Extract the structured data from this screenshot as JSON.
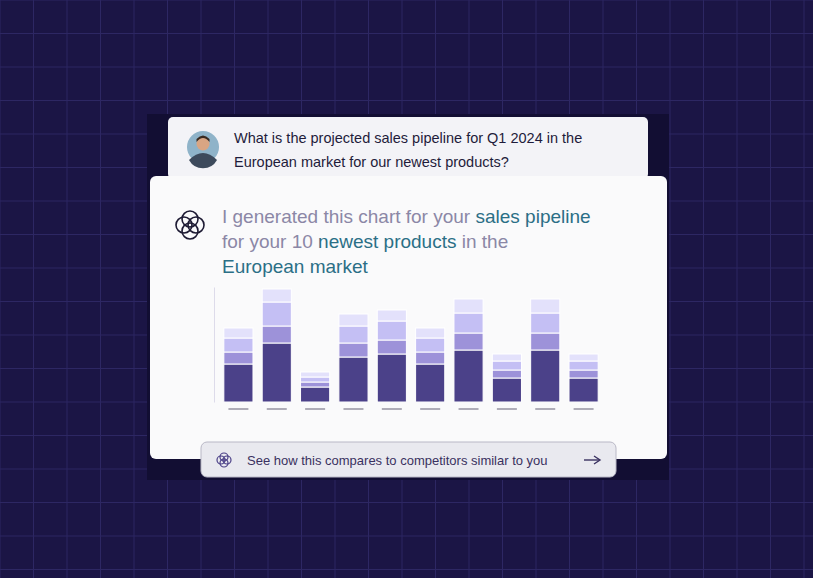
{
  "question": {
    "lines": [
      "What is the projected sales pipeline for Q1 2024 in the",
      "European market for our newest products?"
    ]
  },
  "answer": {
    "lines": [
      [
        {
          "text": "I generated this chart for your ",
          "highlight": false
        },
        {
          "text": "sales pipeline",
          "highlight": true
        }
      ],
      [
        {
          "text": "for your 10 ",
          "highlight": false
        },
        {
          "text": "newest products",
          "highlight": true
        },
        {
          "text": " in the",
          "highlight": false
        }
      ],
      [
        {
          "text": "European market",
          "highlight": true
        }
      ]
    ]
  },
  "button": {
    "text": "See how this compares to competitors similar to you"
  },
  "chart_data": {
    "type": "bar",
    "stacked": true,
    "categories": [
      null,
      null,
      null,
      null,
      null,
      null,
      null,
      null,
      null,
      null
    ],
    "series": [
      {
        "color": "#4b4189",
        "values": [
          38,
          59,
          15,
          45,
          48,
          38,
          52,
          24,
          52,
          24
        ]
      },
      {
        "color": "#9d92d9",
        "values": [
          12,
          17,
          5,
          14,
          14,
          12,
          17,
          8,
          17,
          8
        ]
      },
      {
        "color": "#c4bff4",
        "values": [
          14,
          24,
          5,
          17,
          19,
          14,
          20,
          9,
          20,
          9
        ]
      },
      {
        "color": "#e3e1fb",
        "values": [
          10,
          13,
          5,
          12,
          11,
          10,
          14,
          7,
          14,
          7
        ]
      }
    ],
    "ylim": [
      0,
      115
    ],
    "yticks": [],
    "grid": false,
    "tick_labels": false
  }
}
